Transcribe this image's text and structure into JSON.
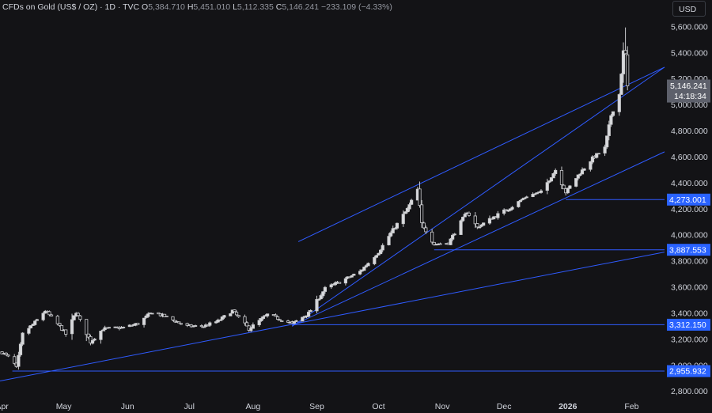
{
  "header": {
    "symbol": "CFDs on Gold (US$ / OZ) · 1D · TVC",
    "o_label": "O",
    "o_value": "5,384.710",
    "h_label": "H",
    "h_value": "5,451.010",
    "l_label": "L",
    "l_value": "5,112.335",
    "c_label": "C",
    "c_value": "5,146.241",
    "change": "−233.109 (−4.33%)"
  },
  "currency_button": "USD",
  "colors": {
    "background": "#131316",
    "candle_up": "#d8d9dc",
    "candle_down": "#d8d9dc",
    "lines": "#2f5bff",
    "axis_text": "#d1d4dc",
    "price_label_bg": "#2962ff",
    "last_price_bg": "#5d606b"
  },
  "chart_data": {
    "type": "candlestick",
    "y_ticks": [
      "2,800.000",
      "3,000.000",
      "3,200.000",
      "3,400.000",
      "3,600.000",
      "3,800.000",
      "4,000.000",
      "4,200.000",
      "4,400.000",
      "4,600.000",
      "4,800.000",
      "5,000.000",
      "5,200.000",
      "5,400.000",
      "5,600.000"
    ],
    "y_tick_values": [
      2800,
      3000,
      3200,
      3400,
      3600,
      3800,
      4000,
      4200,
      4400,
      4600,
      4800,
      5000,
      5200,
      5400,
      5600
    ],
    "ylim": [
      2780,
      5660
    ],
    "x_ticks": [
      "Apr",
      "May",
      "Jun",
      "Jul",
      "Aug",
      "Sep",
      "Oct",
      "Nov",
      "Dec",
      "2026",
      "Feb"
    ],
    "x_tick_dates": [
      "2025-04-01",
      "2025-05-01",
      "2025-06-01",
      "2025-07-01",
      "2025-08-01",
      "2025-09-01",
      "2025-10-01",
      "2025-11-01",
      "2025-12-01",
      "2026-01-01",
      "2026-02-01"
    ],
    "xlim": [
      "2025-03-31",
      "2026-02-17"
    ],
    "horizontal_levels": [
      {
        "label": "4,273.001",
        "value": 4273.001,
        "start": "2025-12-31"
      },
      {
        "label": "3,887.553",
        "value": 3887.553,
        "start": "2025-10-28"
      },
      {
        "label": "3,312.150",
        "value": 3312.15,
        "start": "2025-08-20"
      },
      {
        "label": "2,955.932",
        "value": 2955.932,
        "start": "2025-04-06"
      }
    ],
    "last_price": {
      "label": "5,146.241",
      "countdown": "14:18:34",
      "value": 5146.241
    },
    "trendlines": [
      {
        "from": [
          "2025-03-31",
          2880
        ],
        "to": [
          "2026-02-17",
          3870
        ]
      },
      {
        "from": [
          "2025-08-20",
          3305
        ],
        "to": [
          "2026-02-17",
          4640
        ]
      },
      {
        "from": [
          "2025-08-20",
          3300
        ],
        "to": [
          "2026-02-17",
          5290
        ]
      },
      {
        "from": [
          "2025-08-23",
          3950
        ],
        "to": [
          "2026-02-17",
          5290
        ]
      }
    ],
    "waypoints": [
      [
        "2025-04-01",
        3100
      ],
      [
        "2025-04-06",
        3040
      ],
      [
        "2025-04-08",
        2980
      ],
      [
        "2025-04-11",
        3240
      ],
      [
        "2025-04-17",
        3330
      ],
      [
        "2025-04-22",
        3420
      ],
      [
        "2025-04-29",
        3300
      ],
      [
        "2025-05-02",
        3240
      ],
      [
        "2025-05-07",
        3410
      ],
      [
        "2025-05-14",
        3180
      ],
      [
        "2025-05-20",
        3280
      ],
      [
        "2025-05-30",
        3290
      ],
      [
        "2025-06-06",
        3320
      ],
      [
        "2025-06-13",
        3410
      ],
      [
        "2025-06-20",
        3370
      ],
      [
        "2025-06-30",
        3300
      ],
      [
        "2025-07-08",
        3300
      ],
      [
        "2025-07-15",
        3340
      ],
      [
        "2025-07-22",
        3420
      ],
      [
        "2025-07-30",
        3280
      ],
      [
        "2025-08-08",
        3390
      ],
      [
        "2025-08-20",
        3320
      ],
      [
        "2025-08-28",
        3400
      ],
      [
        "2025-09-05",
        3590
      ],
      [
        "2025-09-12",
        3640
      ],
      [
        "2025-09-22",
        3720
      ],
      [
        "2025-10-01",
        3870
      ],
      [
        "2025-10-08",
        4040
      ],
      [
        "2025-10-15",
        4200
      ],
      [
        "2025-10-20",
        4350
      ],
      [
        "2025-10-22",
        4090
      ],
      [
        "2025-10-28",
        3930
      ],
      [
        "2025-11-04",
        3940
      ],
      [
        "2025-11-13",
        4180
      ],
      [
        "2025-11-18",
        4060
      ],
      [
        "2025-11-26",
        4140
      ],
      [
        "2025-12-05",
        4220
      ],
      [
        "2025-12-12",
        4300
      ],
      [
        "2025-12-19",
        4330
      ],
      [
        "2025-12-26",
        4500
      ],
      [
        "2025-12-31",
        4330
      ],
      [
        "2026-01-06",
        4460
      ],
      [
        "2026-01-13",
        4590
      ],
      [
        "2026-01-19",
        4670
      ],
      [
        "2026-01-22",
        4920
      ],
      [
        "2026-01-26",
        5080
      ],
      [
        "2026-01-28",
        5410
      ],
      [
        "2026-01-29",
        5390
      ],
      [
        "2026-01-30",
        5146.241
      ]
    ]
  }
}
